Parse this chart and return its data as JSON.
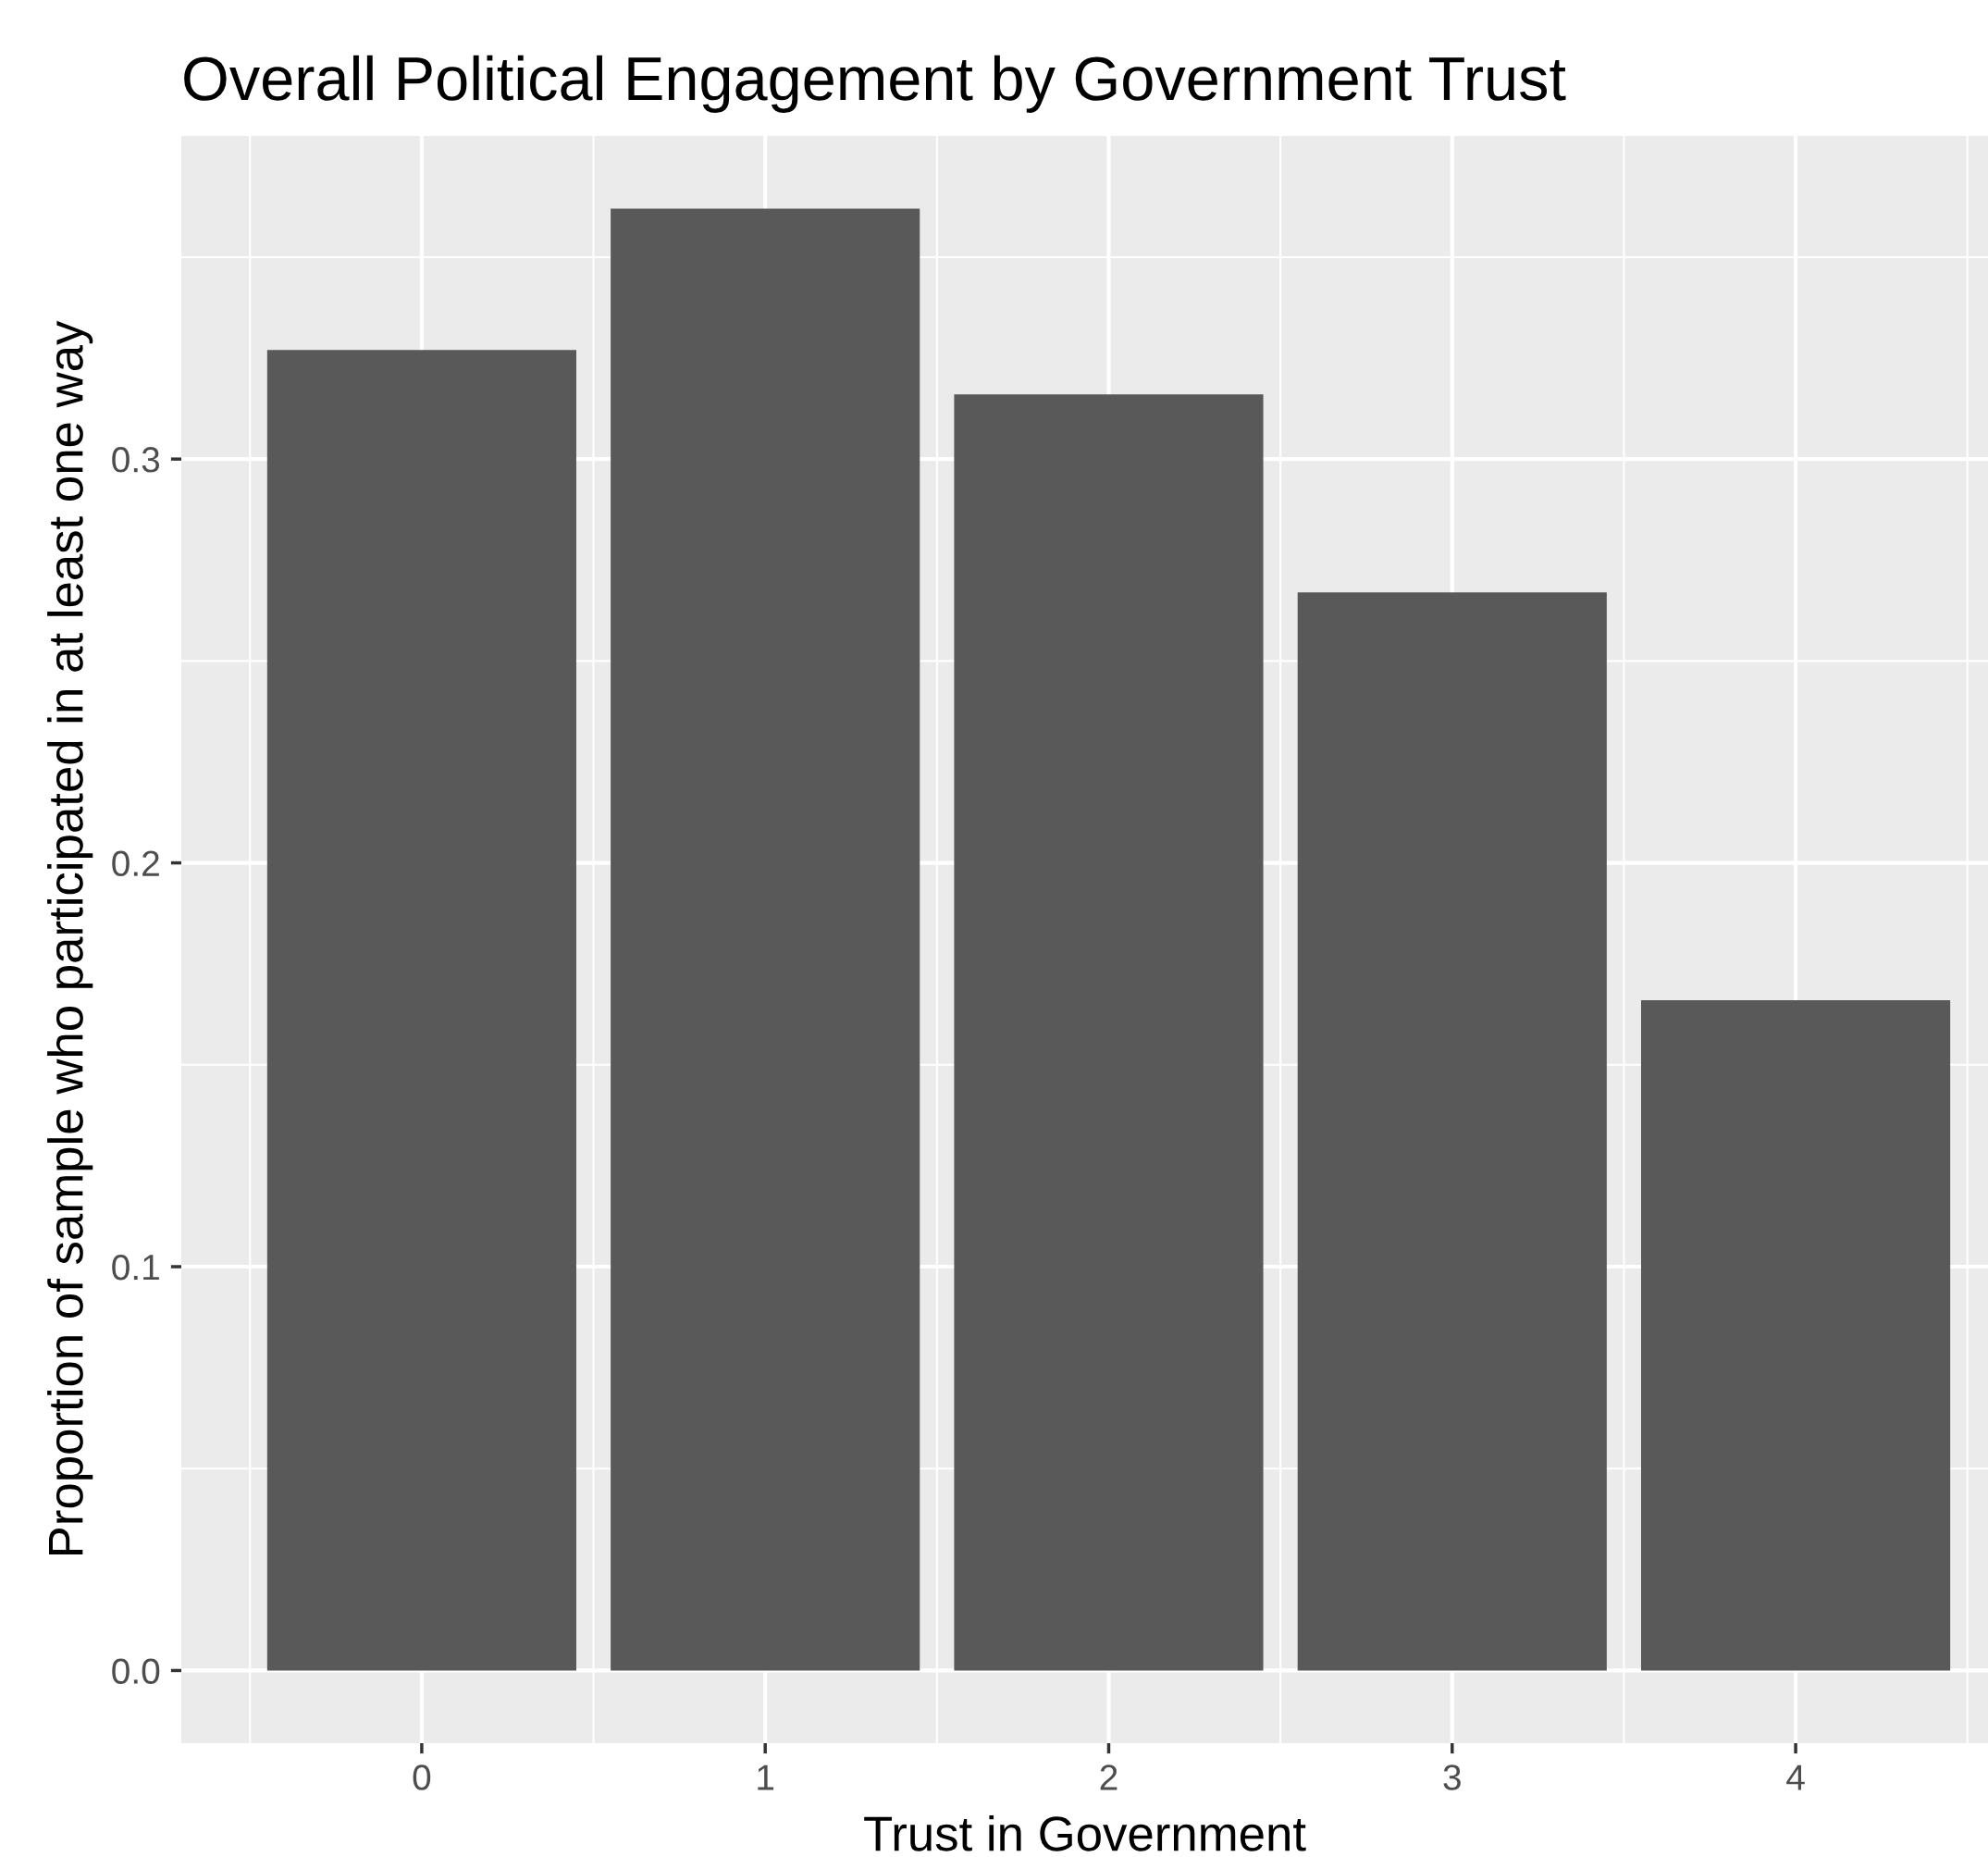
{
  "chart_data": {
    "type": "bar",
    "title": "Overall Political Engagement by Government Trust",
    "xlabel": "Trust in Government",
    "ylabel": "Proportion of sample who participated in at least one way",
    "x": [
      0,
      1,
      2,
      3,
      4
    ],
    "values": [
      0.327,
      0.362,
      0.316,
      0.267,
      0.166
    ],
    "color": "#595959",
    "xlim": [
      -0.7,
      4.56
    ],
    "xticks": [
      0,
      1,
      2,
      3,
      4
    ],
    "ylim": [
      -0.018,
      0.38
    ],
    "yticks": [
      {
        "value": 0,
        "label": "0.0"
      },
      0.1,
      0.2,
      0.3
    ],
    "grid": true
  }
}
